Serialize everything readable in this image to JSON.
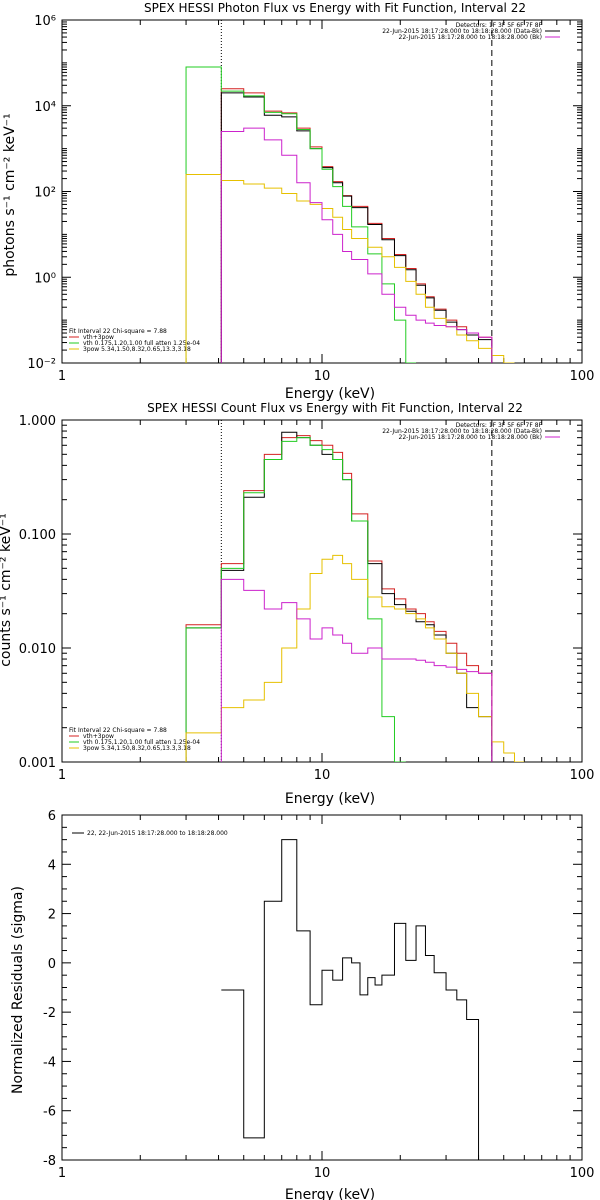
{
  "colors": {
    "black": "#000000",
    "red": "#d42020",
    "green": "#22cc22",
    "yellow": "#e6c000",
    "magenta": "#cc22cc",
    "purple": "#8844aa"
  },
  "chart_data": [
    {
      "type": "line",
      "title": "SPEX HESSI Photon Flux vs Energy with Fit Function, Interval 22",
      "xlabel": "Energy (keV)",
      "ylabel": "photons s⁻¹ cm⁻² keV⁻¹",
      "xscale": "log",
      "yscale": "log",
      "xlim": [
        1,
        100
      ],
      "ylim": [
        0.01,
        1000000
      ],
      "xtick_labels": [
        "1",
        "10",
        "100"
      ],
      "ytick_labels": [
        "10⁻²",
        "10⁰",
        "10²",
        "10⁴",
        "10⁶"
      ],
      "vlines": [
        {
          "x": 4.1,
          "style": "dotted"
        },
        {
          "x": 45,
          "style": "dashed"
        }
      ],
      "legend_tr": [
        "Detectors: 1F 3F 5F 6F 7F 8F",
        "22-Jun-2015 18:17:28.000 to 18:18:28.000 (Data-Bk)",
        "22-Jun-2015 18:17:28.000 to 18:18:28.000 (Bk)"
      ],
      "legend_bl": [
        "Fit Interval 22  Chi-square = 7.88",
        "vth+3pow",
        "vth 0.175,1.20,1.00  full atten 1.25e-04",
        "3pow 5.34,1.50,8.32,0.65,13.3,3.18"
      ],
      "series": [
        {
          "name": "vth+3pow",
          "color": "red",
          "edges": [
            4.1,
            5,
            6,
            7,
            8,
            9,
            10,
            11,
            12,
            13,
            15,
            17,
            19,
            21,
            23,
            25,
            27,
            30,
            33,
            36,
            40,
            45
          ],
          "values": [
            25000,
            20000,
            7500,
            6800,
            3000,
            1100,
            380,
            170,
            80,
            45,
            18,
            8,
            3.4,
            1.6,
            0.7,
            0.35,
            0.18,
            0.1,
            0.07,
            0.05,
            0.04
          ]
        },
        {
          "name": "Data-Bk",
          "color": "black",
          "edges": [
            4.1,
            5,
            6,
            7,
            8,
            9,
            10,
            11,
            12,
            13,
            15,
            17,
            19,
            21,
            23,
            25,
            27,
            30,
            33,
            36,
            40,
            45
          ],
          "values": [
            20000,
            16000,
            6000,
            5500,
            2600,
            1000,
            360,
            160,
            78,
            42,
            17,
            7.5,
            3.2,
            1.5,
            0.65,
            0.33,
            0.17,
            0.09,
            0.06,
            0.045,
            0.035
          ]
        },
        {
          "name": "vth",
          "color": "green",
          "edges": [
            3,
            4.1,
            5,
            6,
            7,
            8,
            9,
            10,
            11,
            12,
            13,
            15,
            17,
            19,
            21,
            23
          ],
          "values": [
            80000,
            22000,
            17000,
            7000,
            6500,
            2800,
            1000,
            330,
            130,
            45,
            15,
            3.5,
            0.7,
            0.1,
            0.01
          ]
        },
        {
          "name": "3pow",
          "color": "yellow",
          "edges": [
            3,
            4.1,
            5,
            6,
            7,
            8,
            9,
            10,
            11,
            12,
            13,
            15,
            17,
            19,
            21,
            23,
            25,
            27,
            30,
            33,
            36,
            40,
            45,
            50,
            55
          ],
          "values": [
            250,
            180,
            150,
            120,
            90,
            60,
            50,
            40,
            25,
            13,
            8,
            5,
            3,
            1.7,
            0.8,
            0.4,
            0.2,
            0.11,
            0.07,
            0.045,
            0.033,
            0.022,
            0.015,
            0.01
          ]
        },
        {
          "name": "Bk",
          "color": "magenta",
          "edges": [
            4.1,
            5,
            6,
            7,
            8,
            9,
            10,
            11,
            12,
            13,
            15,
            17,
            19,
            21,
            23,
            25,
            27,
            30,
            33,
            36,
            40,
            45
          ],
          "values": [
            2500,
            3000,
            1600,
            700,
            160,
            55,
            22,
            10,
            4,
            2.6,
            1.2,
            0.4,
            0.2,
            0.13,
            0.1,
            0.085,
            0.075,
            0.07,
            0.06,
            0.05,
            0.04
          ]
        }
      ]
    },
    {
      "type": "line",
      "title": "SPEX HESSI Count Flux vs Energy with Fit Function, Interval 22",
      "xlabel": "Energy (keV)",
      "ylabel": "counts s⁻¹ cm⁻² keV⁻¹",
      "xscale": "log",
      "yscale": "log",
      "xlim": [
        1,
        100
      ],
      "ylim": [
        0.001,
        1
      ],
      "xtick_labels": [
        "1",
        "10",
        "100"
      ],
      "ytick_labels": [
        "0.001",
        "0.010",
        "0.100",
        "1.000"
      ],
      "vlines": [
        {
          "x": 4.1,
          "style": "dotted"
        },
        {
          "x": 45,
          "style": "dashed"
        }
      ],
      "legend_tr": [
        "Detectors: 1F 3F 5F 6F 7F 8F",
        "22-Jun-2015 18:17:28.000 to 18:18:28.000 (Data-Bk)",
        "22-Jun-2015 18:17:28.000 to 18:18:28.000 (Bk)"
      ],
      "legend_bl": [
        "Fit Interval 22  Chi-square = 7.88",
        "vth+3pow",
        "vth 0.175,1.20,1.00  full atten 1.25e-04",
        "3pow 5.34,1.50,8.32,0.65,13.3,3.18"
      ],
      "series": [
        {
          "name": "vth+3pow",
          "color": "red",
          "edges": [
            3,
            4.1,
            5,
            6,
            7,
            8,
            9,
            10,
            11,
            12,
            13,
            15,
            17,
            19,
            21,
            23,
            25,
            27,
            30,
            33,
            36,
            40,
            45
          ],
          "values": [
            0.016,
            0.055,
            0.24,
            0.5,
            0.7,
            0.73,
            0.66,
            0.6,
            0.52,
            0.34,
            0.15,
            0.058,
            0.033,
            0.027,
            0.022,
            0.02,
            0.017,
            0.014,
            0.011,
            0.009,
            0.007,
            0.006
          ]
        },
        {
          "name": "Data-Bk",
          "color": "black",
          "edges": [
            3,
            4.1,
            5,
            6,
            7,
            8,
            9,
            10,
            11,
            12,
            13,
            15,
            17,
            19,
            21,
            23,
            25,
            27,
            30,
            33,
            36,
            40,
            45
          ],
          "values": [
            0.015,
            0.048,
            0.21,
            0.45,
            0.78,
            0.7,
            0.6,
            0.5,
            0.45,
            0.3,
            0.13,
            0.055,
            0.03,
            0.024,
            0.021,
            0.017,
            0.016,
            0.013,
            0.009,
            0.006,
            0.003,
            0.0025
          ]
        },
        {
          "name": "vth",
          "color": "green",
          "edges": [
            3,
            4.1,
            5,
            6,
            7,
            8,
            9,
            10,
            11,
            12,
            13,
            15,
            17,
            19,
            21
          ],
          "values": [
            0.015,
            0.05,
            0.23,
            0.45,
            0.65,
            0.7,
            0.6,
            0.55,
            0.45,
            0.3,
            0.13,
            0.018,
            0.0025,
            0.0008
          ]
        },
        {
          "name": "3pow",
          "color": "yellow",
          "edges": [
            3,
            4.1,
            5,
            6,
            7,
            8,
            9,
            10,
            11,
            12,
            13,
            15,
            17,
            19,
            21,
            23,
            25,
            27,
            30,
            33,
            36,
            40,
            45,
            50,
            55,
            60
          ],
          "values": [
            0.0018,
            0.003,
            0.0035,
            0.005,
            0.01,
            0.022,
            0.045,
            0.06,
            0.065,
            0.055,
            0.04,
            0.028,
            0.023,
            0.022,
            0.02,
            0.018,
            0.015,
            0.012,
            0.009,
            0.006,
            0.004,
            0.0025,
            0.0015,
            0.0012,
            0.001
          ]
        },
        {
          "name": "Bk",
          "color": "magenta",
          "edges": [
            4.1,
            5,
            6,
            7,
            8,
            9,
            10,
            11,
            12,
            13,
            15,
            17,
            19,
            21,
            23,
            25,
            27,
            30,
            33,
            36,
            40,
            45
          ],
          "values": [
            0.04,
            0.032,
            0.022,
            0.025,
            0.018,
            0.012,
            0.015,
            0.013,
            0.011,
            0.009,
            0.01,
            0.008,
            0.008,
            0.008,
            0.0078,
            0.0075,
            0.007,
            0.0068,
            0.0065,
            0.0062,
            0.006
          ]
        }
      ]
    },
    {
      "type": "line",
      "title": "",
      "xlabel": "Energy (keV)",
      "ylabel": "Normalized Residuals (sigma)",
      "xscale": "log",
      "yscale": "linear",
      "xlim": [
        1,
        100
      ],
      "ylim": [
        -8,
        6
      ],
      "xtick_labels": [
        "1",
        "10",
        "100"
      ],
      "ytick_labels": [
        "-8",
        "-6",
        "-4",
        "-2",
        "0",
        "2",
        "4",
        "6"
      ],
      "legend_tl": [
        "22, 22-Jun-2015 18:17:28.000 to 18:18:28.000"
      ],
      "series": [
        {
          "name": "22",
          "color": "black",
          "edges": [
            4.1,
            5,
            6,
            7,
            8,
            9,
            10,
            11,
            12,
            13,
            14,
            15,
            16,
            17,
            19,
            21,
            23,
            25,
            27,
            30,
            33,
            36,
            40,
            45
          ],
          "values": [
            -1.1,
            -7.1,
            2.5,
            5.0,
            1.3,
            -1.7,
            -0.3,
            -0.7,
            0.2,
            0.0,
            -1.3,
            -0.6,
            -0.9,
            -0.5,
            1.6,
            0.1,
            1.5,
            0.3,
            -0.4,
            -1.1,
            -1.5,
            -2.3,
            -8.0
          ]
        }
      ]
    }
  ]
}
